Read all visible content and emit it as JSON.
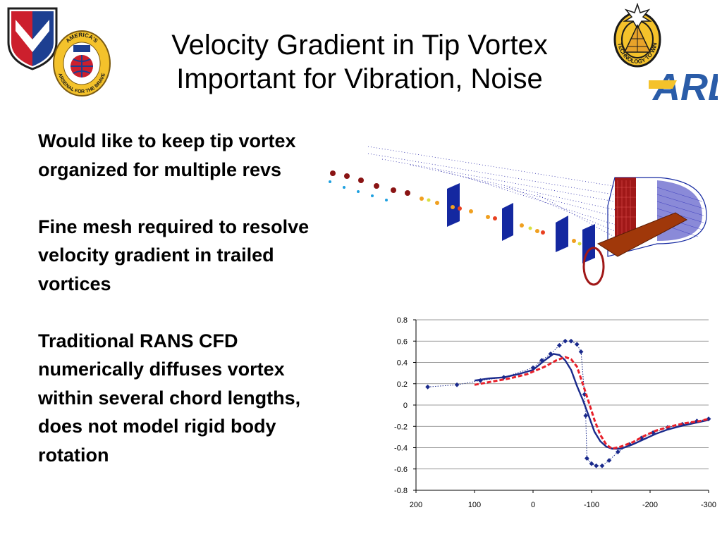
{
  "slide": {
    "title_line1": "Velocity Gradient in Tip Vortex",
    "title_line2": "Important for Vibration, Noise",
    "bullets": [
      "Would like to keep tip vortex organized for multiple revs",
      "Fine mesh required to resolve velocity gradient in trailed vortices",
      "Traditional RANS CFD numerically diffuses vortex within several chord lengths, does not model rigid body rotation"
    ]
  },
  "logos": {
    "arsenal_top": "AMERICA'S",
    "arsenal_bottom": "ARSENAL FOR THE BRAVE",
    "tech_text": "TECHNOLOGY TO WIN",
    "arl_text": "ARL",
    "colors": {
      "army_red": "#cc1f2d",
      "army_blue": "#1d3f91",
      "arl_gold": "#f4c22b",
      "arl_blue": "#2a5ca8"
    }
  },
  "chart_data": {
    "type": "line",
    "xlim": [
      200,
      -300
    ],
    "ylim": [
      -0.8,
      0.8
    ],
    "xticks": [
      "200",
      "100",
      "0",
      "-100",
      "-200",
      "-300"
    ],
    "yticks": [
      "0.8",
      "0.6",
      "0.4",
      "0.2",
      "0",
      "-0.2",
      "-0.4",
      "-0.6",
      "-0.8"
    ],
    "grid": true,
    "series": [
      {
        "style": "dotted-markers",
        "color": "#1a2a8c",
        "points": [
          [
            180,
            0.17
          ],
          [
            130,
            0.19
          ],
          [
            90,
            0.23
          ],
          [
            50,
            0.26
          ],
          [
            0,
            0.35
          ],
          [
            -15,
            0.42
          ],
          [
            -30,
            0.48
          ],
          [
            -45,
            0.56
          ],
          [
            -55,
            0.6
          ],
          [
            -65,
            0.6
          ],
          [
            -75,
            0.57
          ],
          [
            -82,
            0.5
          ],
          [
            -88,
            0.1
          ],
          [
            -90,
            -0.1
          ],
          [
            -92,
            -0.5
          ],
          [
            -100,
            -0.55
          ],
          [
            -108,
            -0.57
          ],
          [
            -118,
            -0.57
          ],
          [
            -130,
            -0.52
          ],
          [
            -145,
            -0.44
          ],
          [
            -165,
            -0.37
          ],
          [
            -185,
            -0.31
          ],
          [
            -205,
            -0.26
          ],
          [
            -230,
            -0.21
          ],
          [
            -255,
            -0.18
          ],
          [
            -280,
            -0.15
          ],
          [
            -300,
            -0.13
          ]
        ]
      },
      {
        "style": "solid",
        "color": "#1a2a8c",
        "points": [
          [
            100,
            0.23
          ],
          [
            75,
            0.25
          ],
          [
            50,
            0.26
          ],
          [
            25,
            0.29
          ],
          [
            0,
            0.33
          ],
          [
            -20,
            0.42
          ],
          [
            -35,
            0.48
          ],
          [
            -45,
            0.47
          ],
          [
            -55,
            0.42
          ],
          [
            -65,
            0.33
          ],
          [
            -75,
            0.18
          ],
          [
            -85,
            0.05
          ],
          [
            -95,
            -0.1
          ],
          [
            -105,
            -0.25
          ],
          [
            -115,
            -0.34
          ],
          [
            -125,
            -0.39
          ],
          [
            -135,
            -0.41
          ],
          [
            -150,
            -0.41
          ],
          [
            -170,
            -0.37
          ],
          [
            -190,
            -0.32
          ],
          [
            -210,
            -0.27
          ],
          [
            -230,
            -0.23
          ],
          [
            -250,
            -0.2
          ],
          [
            -275,
            -0.17
          ],
          [
            -300,
            -0.14
          ]
        ]
      },
      {
        "style": "dashed",
        "color": "#e8202a",
        "points": [
          [
            100,
            0.19
          ],
          [
            70,
            0.22
          ],
          [
            40,
            0.25
          ],
          [
            10,
            0.29
          ],
          [
            -20,
            0.36
          ],
          [
            -40,
            0.42
          ],
          [
            -55,
            0.45
          ],
          [
            -65,
            0.43
          ],
          [
            -75,
            0.36
          ],
          [
            -85,
            0.2
          ],
          [
            -95,
            0.03
          ],
          [
            -105,
            -0.14
          ],
          [
            -115,
            -0.28
          ],
          [
            -125,
            -0.37
          ],
          [
            -135,
            -0.41
          ],
          [
            -150,
            -0.39
          ],
          [
            -170,
            -0.35
          ],
          [
            -190,
            -0.29
          ],
          [
            -210,
            -0.24
          ],
          [
            -235,
            -0.2
          ],
          [
            -260,
            -0.17
          ],
          [
            -285,
            -0.15
          ],
          [
            -300,
            -0.13
          ]
        ]
      }
    ]
  }
}
